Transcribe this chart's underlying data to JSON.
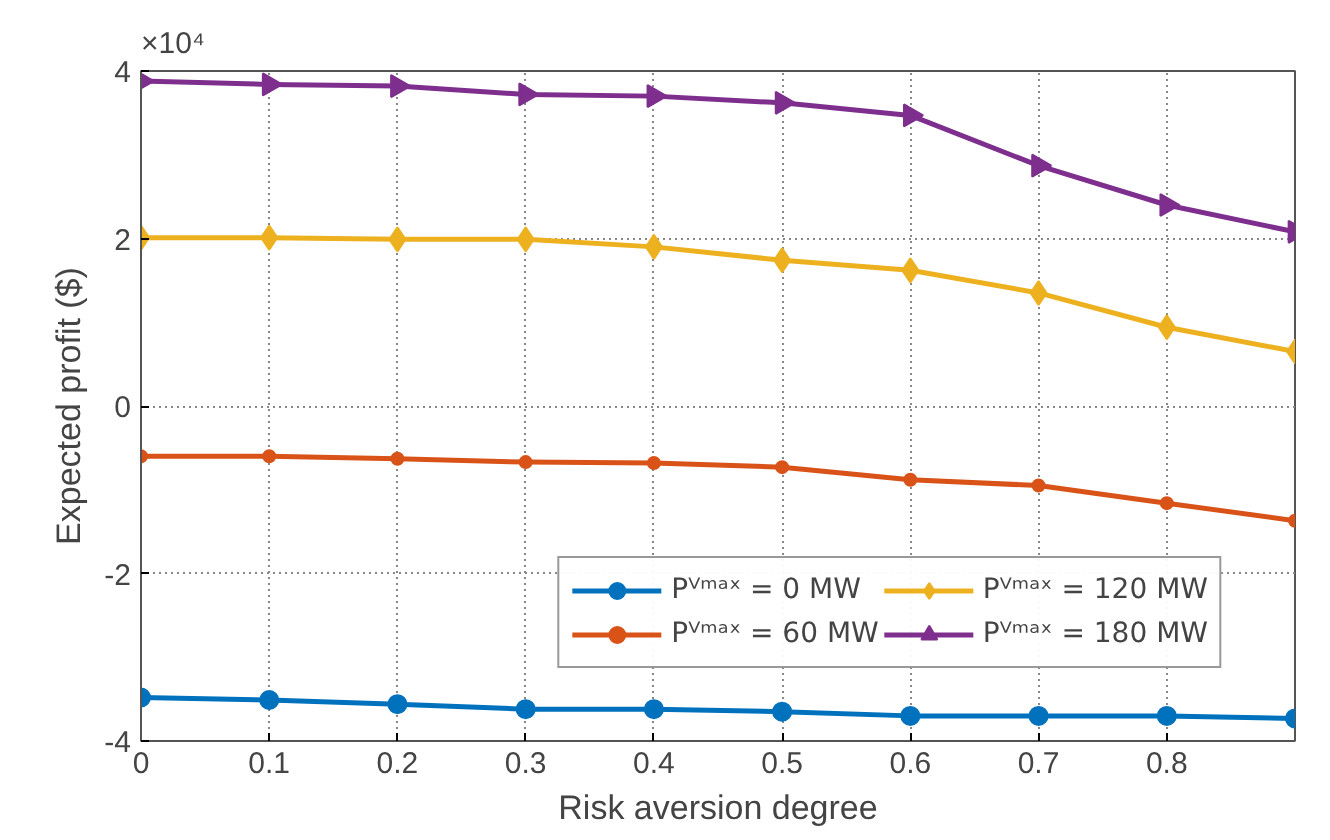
{
  "chart_data": {
    "type": "line",
    "xlabel": "Risk aversion degree",
    "ylabel": "Expected profit ($)",
    "annotations": [
      "×10⁴"
    ],
    "x": [
      0,
      0.1,
      0.2,
      0.3,
      0.4,
      0.5,
      0.6,
      0.7,
      0.8,
      0.9
    ],
    "series": [
      {
        "name": "Pⱽᵐᵃˣ = 0 MW",
        "color": "#0072bd",
        "marker": "circle",
        "values": [
          -3.48,
          -3.51,
          -3.56,
          -3.62,
          -3.62,
          -3.65,
          -3.7,
          -3.7,
          -3.7,
          -3.73
        ]
      },
      {
        "name": "Pⱽᵐᵃˣ = 60 MW",
        "color": "#d95319",
        "marker": "circle",
        "values": [
          -0.6,
          -0.6,
          -0.63,
          -0.67,
          -0.68,
          -0.73,
          -0.88,
          -0.95,
          -1.16,
          -1.37
        ]
      },
      {
        "name": "Pⱽᵐᵃˣ = 120 MW",
        "color": "#edb120",
        "marker": "diamond",
        "values": [
          2.01,
          2.01,
          1.99,
          1.99,
          1.9,
          1.74,
          1.62,
          1.35,
          0.94,
          0.65
        ]
      },
      {
        "name": "Pⱽᵐᵃˣ = 180 MW",
        "color": "#7e2f8e",
        "marker": "triangle",
        "values": [
          3.88,
          3.84,
          3.82,
          3.72,
          3.7,
          3.62,
          3.47,
          2.87,
          2.4,
          2.08
        ]
      }
    ],
    "xlim": [
      0,
      0.9
    ],
    "ylim": [
      -4,
      4
    ],
    "xticks": [
      0,
      0.1,
      0.2,
      0.3,
      0.4,
      0.5,
      0.6,
      0.7,
      0.8
    ],
    "yticks": [
      -4,
      -2,
      0,
      2,
      4
    ],
    "grid": true,
    "legend": "bottom right",
    "line_style": "solid"
  }
}
